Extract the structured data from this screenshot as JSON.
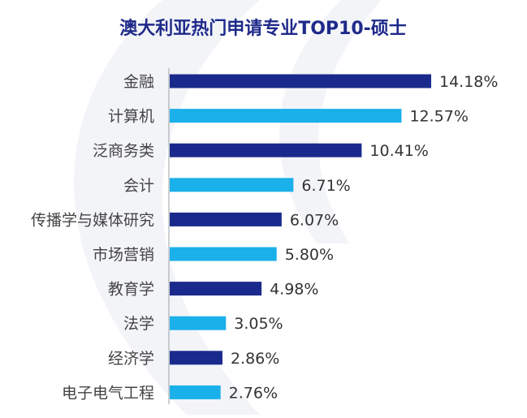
{
  "chart_data": {
    "type": "bar",
    "orientation": "horizontal",
    "title": "澳大利亚热门申请专业TOP10-硕士",
    "categories": [
      "金融",
      "计算机",
      "泛商务类",
      "会计",
      "传播学与媒体研究",
      "市场营销",
      "教育学",
      "法学",
      "经济学",
      "电子电气工程"
    ],
    "values": [
      14.18,
      12.57,
      10.41,
      6.71,
      6.07,
      5.8,
      4.98,
      3.05,
      2.86,
      2.76
    ],
    "value_labels": [
      "14.18%",
      "12.57%",
      "10.41%",
      "6.71%",
      "6.07%",
      "5.80%",
      "4.98%",
      "3.05%",
      "2.86%",
      "2.76%"
    ],
    "unit": "%",
    "xlabel": "",
    "ylabel": "",
    "xlim": [
      0,
      14.18
    ],
    "grid": false,
    "legend": "none",
    "colors": {
      "odd_rank": "#1a2a8c",
      "even_rank": "#1ab0ea",
      "title": "#1f2a8a",
      "axis": "#9aa0a6",
      "background_swoosh": "#f3f4f8"
    }
  }
}
